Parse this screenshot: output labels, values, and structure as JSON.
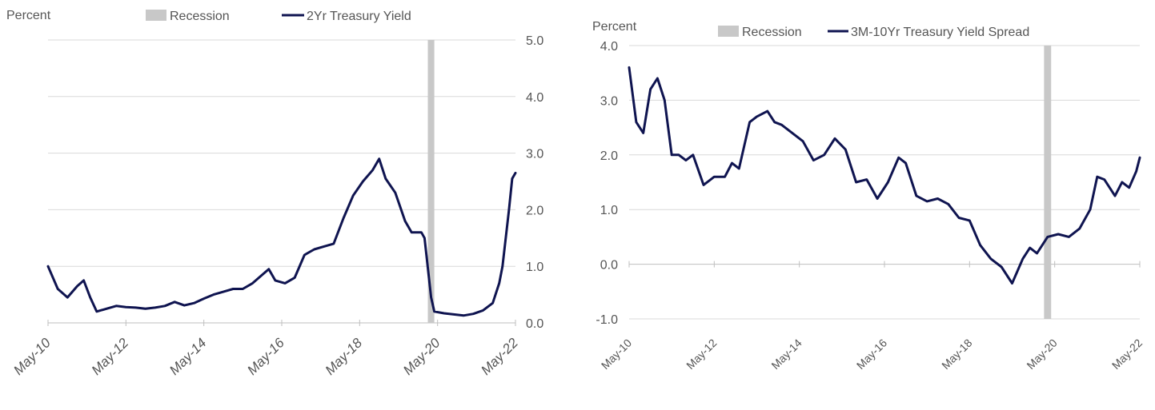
{
  "chart_data": [
    {
      "type": "line",
      "ylabel": "Percent",
      "ylim": [
        0,
        5
      ],
      "yticks": [
        "0.0",
        "1.0",
        "2.0",
        "3.0",
        "4.0",
        "5.0"
      ],
      "y_axis_side": "right",
      "xticks": [
        "May-10",
        "May-12",
        "May-14",
        "May-16",
        "May-18",
        "May-20",
        "May-22"
      ],
      "legend": {
        "placement": "top-center",
        "recession_label": "Recession",
        "series_label": "2Yr Treasury Yield"
      },
      "recession": {
        "start": "2020-02",
        "end": "2020-04",
        "color": "#c8c8c8"
      },
      "series": [
        {
          "name": "2Yr Treasury Yield",
          "color": "#0f1450",
          "x": [
            "2010-05",
            "2010-08",
            "2010-11",
            "2011-02",
            "2011-04",
            "2011-06",
            "2011-08",
            "2011-11",
            "2012-02",
            "2012-05",
            "2012-08",
            "2012-11",
            "2013-02",
            "2013-05",
            "2013-08",
            "2013-11",
            "2014-02",
            "2014-05",
            "2014-08",
            "2014-11",
            "2015-02",
            "2015-05",
            "2015-08",
            "2015-11",
            "2016-01",
            "2016-03",
            "2016-06",
            "2016-09",
            "2016-12",
            "2017-03",
            "2017-06",
            "2017-09",
            "2017-12",
            "2018-03",
            "2018-06",
            "2018-09",
            "2018-11",
            "2019-01",
            "2019-04",
            "2019-07",
            "2019-09",
            "2019-12",
            "2020-01",
            "2020-03",
            "2020-04",
            "2020-07",
            "2020-10",
            "2021-01",
            "2021-04",
            "2021-07",
            "2021-10",
            "2021-12",
            "2022-01",
            "2022-03",
            "2022-04",
            "2022-05"
          ],
          "y": [
            1.0,
            0.6,
            0.45,
            0.65,
            0.75,
            0.45,
            0.2,
            0.25,
            0.3,
            0.28,
            0.27,
            0.25,
            0.27,
            0.3,
            0.37,
            0.31,
            0.35,
            0.43,
            0.5,
            0.55,
            0.6,
            0.6,
            0.7,
            0.85,
            0.95,
            0.75,
            0.7,
            0.8,
            1.2,
            1.3,
            1.35,
            1.4,
            1.85,
            2.25,
            2.5,
            2.7,
            2.9,
            2.55,
            2.3,
            1.8,
            1.6,
            1.6,
            1.5,
            0.45,
            0.2,
            0.17,
            0.15,
            0.13,
            0.16,
            0.22,
            0.35,
            0.7,
            1.0,
            2.0,
            2.55,
            2.65
          ]
        }
      ]
    },
    {
      "type": "line",
      "ylabel": "Percent",
      "ylim": [
        -1,
        4
      ],
      "yticks": [
        "-1.0",
        "0.0",
        "1.0",
        "2.0",
        "3.0",
        "4.0"
      ],
      "y_axis_side": "left",
      "xticks": [
        "May-10",
        "May-12",
        "May-14",
        "May-16",
        "May-18",
        "May-20",
        "May-22"
      ],
      "legend": {
        "placement": "top-center",
        "recession_label": "Recession",
        "series_label": "3M-10Yr Treasury Yield Spread"
      },
      "recession": {
        "start": "2020-02",
        "end": "2020-04",
        "color": "#c8c8c8"
      },
      "series": [
        {
          "name": "3M-10Yr Treasury Yield Spread",
          "color": "#0f1450",
          "x": [
            "2010-05",
            "2010-07",
            "2010-09",
            "2010-11",
            "2011-01",
            "2011-03",
            "2011-05",
            "2011-07",
            "2011-09",
            "2011-11",
            "2012-02",
            "2012-05",
            "2012-08",
            "2012-10",
            "2012-12",
            "2013-03",
            "2013-05",
            "2013-08",
            "2013-10",
            "2013-12",
            "2014-03",
            "2014-06",
            "2014-09",
            "2014-12",
            "2015-03",
            "2015-06",
            "2015-09",
            "2015-12",
            "2016-03",
            "2016-06",
            "2016-09",
            "2016-11",
            "2017-02",
            "2017-05",
            "2017-08",
            "2017-11",
            "2018-02",
            "2018-05",
            "2018-08",
            "2018-11",
            "2019-02",
            "2019-05",
            "2019-08",
            "2019-10",
            "2019-12",
            "2020-03",
            "2020-06",
            "2020-09",
            "2020-12",
            "2021-03",
            "2021-05",
            "2021-07",
            "2021-10",
            "2021-12",
            "2022-02",
            "2022-04",
            "2022-05"
          ],
          "y": [
            3.6,
            2.6,
            2.4,
            3.2,
            3.4,
            3.0,
            2.0,
            2.0,
            1.9,
            2.0,
            1.45,
            1.6,
            1.6,
            1.85,
            1.75,
            2.6,
            2.7,
            2.8,
            2.6,
            2.55,
            2.4,
            2.25,
            1.9,
            2.0,
            2.3,
            2.1,
            1.5,
            1.55,
            1.2,
            1.5,
            1.95,
            1.85,
            1.25,
            1.15,
            1.2,
            1.1,
            0.85,
            0.8,
            0.35,
            0.1,
            -0.05,
            -0.35,
            0.1,
            0.3,
            0.2,
            0.5,
            0.55,
            0.5,
            0.65,
            1.0,
            1.6,
            1.55,
            1.25,
            1.5,
            1.4,
            1.7,
            1.95
          ]
        }
      ]
    }
  ]
}
